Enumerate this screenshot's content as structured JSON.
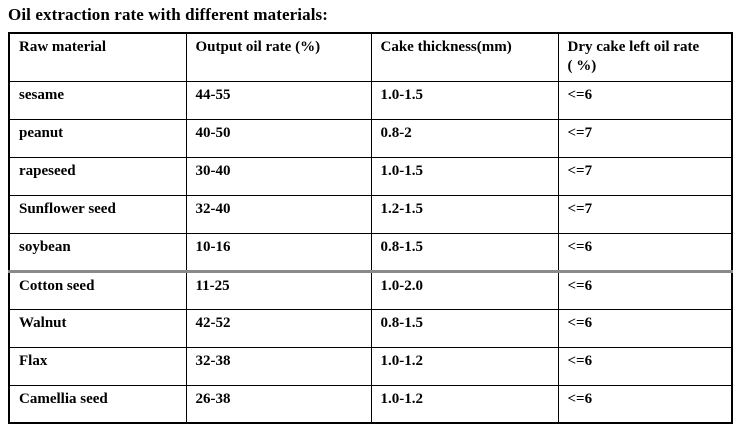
{
  "title": "Oil extraction rate with different materials:",
  "table": {
    "columns": [
      {
        "label": "Raw material"
      },
      {
        "label": "Output oil rate (%)"
      },
      {
        "label": "Cake thickness(mm)"
      },
      {
        "label": "Dry cake left oil rate ( %)"
      }
    ],
    "rows": [
      {
        "material": "sesame",
        "output_oil_rate": "44-55",
        "cake_thickness": "1.0-1.5",
        "dry_cake_left_oil_rate": "<=6"
      },
      {
        "material": "peanut",
        "output_oil_rate": "40-50",
        "cake_thickness": "0.8-2",
        "dry_cake_left_oil_rate": "<=7"
      },
      {
        "material": "rapeseed",
        "output_oil_rate": "30-40",
        "cake_thickness": "1.0-1.5",
        "dry_cake_left_oil_rate": "<=7"
      },
      {
        "material": "Sunflower seed",
        "output_oil_rate": "32-40",
        "cake_thickness": "1.2-1.5",
        "dry_cake_left_oil_rate": "<=7"
      },
      {
        "material": "soybean",
        "output_oil_rate": "10-16",
        "cake_thickness": "0.8-1.5",
        "dry_cake_left_oil_rate": "<=6"
      },
      {
        "material": "Cotton seed",
        "output_oil_rate": "11-25",
        "cake_thickness": "1.0-2.0",
        "dry_cake_left_oil_rate": "<=6",
        "gray_divider_above": true
      },
      {
        "material": "Walnut",
        "output_oil_rate": "42-52",
        "cake_thickness": "0.8-1.5",
        "dry_cake_left_oil_rate": "<=6"
      },
      {
        "material": "Flax",
        "output_oil_rate": "32-38",
        "cake_thickness": "1.0-1.2",
        "dry_cake_left_oil_rate": "<=6"
      },
      {
        "material": "Camellia seed",
        "output_oil_rate": "26-38",
        "cake_thickness": "1.0-1.2",
        "dry_cake_left_oil_rate": "<=6"
      }
    ]
  },
  "colors": {
    "text": "#000000",
    "table_border": "#000000",
    "gray_divider": "#8a8a8a",
    "background": "#ffffff"
  }
}
